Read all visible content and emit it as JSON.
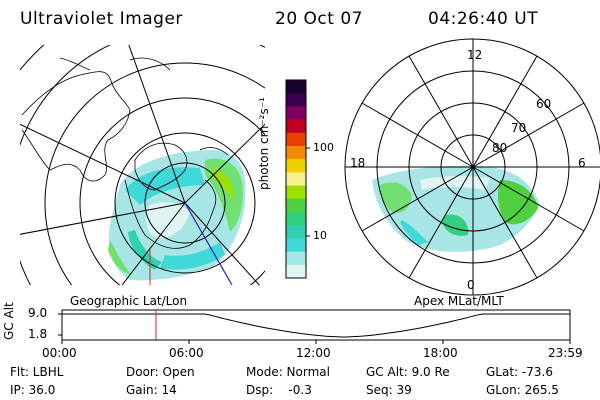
{
  "header": {
    "title": "Ultraviolet Imager",
    "date": "20 Oct 07",
    "time": "04:26:40 UT"
  },
  "colorbar": {
    "label": "photon cm⁻²s⁻¹",
    "ticks": [
      "100",
      "10"
    ],
    "colors": [
      "#1a0030",
      "#3a0050",
      "#800060",
      "#c00020",
      "#e84000",
      "#f08c00",
      "#f0d000",
      "#f8f08a",
      "#9de000",
      "#50d040",
      "#30d080",
      "#30d0b0",
      "#40d8d8",
      "#a0e8e8",
      "#e0f4f4"
    ]
  },
  "left_map": {
    "label": "Geographic Lat/Lon"
  },
  "right_map": {
    "label": "Apex MLat/MLT",
    "mlt_labels": {
      "top": "12",
      "left": "18",
      "right": "6",
      "bottom": "0"
    },
    "lat_labels": [
      "60",
      "70",
      "80"
    ]
  },
  "altitude_plot": {
    "ylabel": "GC Alt",
    "yticks": [
      "9.0",
      "1.8"
    ],
    "xticks": [
      "00:00",
      "06:00",
      "12:00",
      "18:00",
      "23:59"
    ],
    "current_time_hours": 4.44
  },
  "info": {
    "filter": "Flt: LBHL",
    "door": "Door: Open",
    "mode": "Mode: Normal",
    "gc_alt": "GC Alt: 9.0 Re",
    "glat": "GLat: -73.6",
    "ip": "IP: 36.0",
    "gain": "Gain: 14",
    "dsp": "Dsp:    -0.3",
    "seq": "Seq: 39",
    "glon": "GLon: 265.5"
  }
}
